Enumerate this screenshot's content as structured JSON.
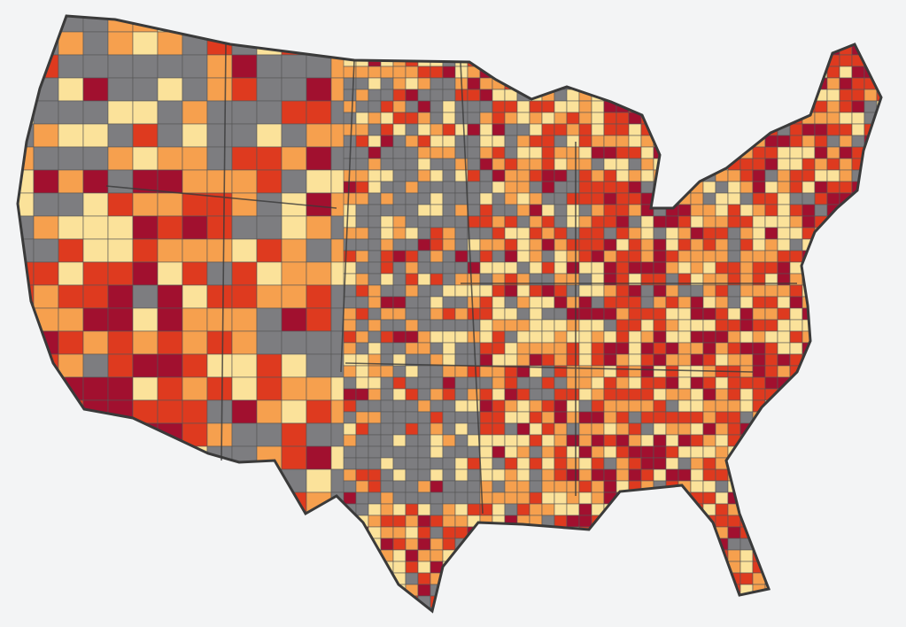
{
  "map": {
    "colors": [
      "#7d7d80",
      "#fbe29a",
      "#f6a04e",
      "#de3a1f",
      "#a1102f"
    ]
  }
}
